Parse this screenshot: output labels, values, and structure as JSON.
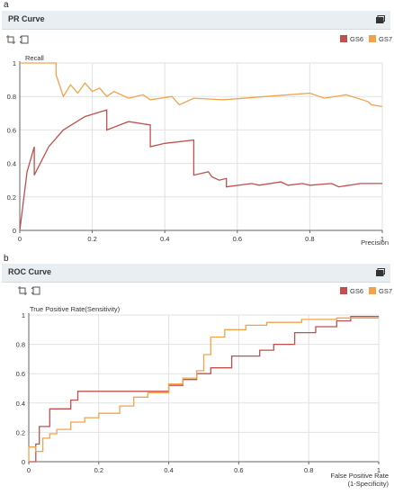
{
  "panels": {
    "a": {
      "letter": "a",
      "title": "PR Curve"
    },
    "b": {
      "letter": "b",
      "title": "ROC Curve"
    }
  },
  "icons": {
    "window": "window-restore-icon",
    "tool1": "zoom-select-icon",
    "tool2": "zoom-reset-icon"
  },
  "chart_data": [
    {
      "type": "line",
      "title": "PR Curve",
      "xlabel": "Precision",
      "ylabel": "Recall",
      "xlim": [
        0,
        1
      ],
      "ylim": [
        0,
        1
      ],
      "xticks": [
        "0",
        "0.2",
        "0.4",
        "0.6",
        "0.8",
        "1"
      ],
      "yticks": [
        "0",
        "0.2",
        "0.4",
        "0.6",
        "0.8",
        "1"
      ],
      "legend": "top-right",
      "grid": true,
      "series": [
        {
          "name": "GS6",
          "color": "#c0504d",
          "points": [
            [
              0,
              0
            ],
            [
              0.02,
              0.35
            ],
            [
              0.04,
              0.5
            ],
            [
              0.04,
              0.33
            ],
            [
              0.08,
              0.5
            ],
            [
              0.12,
              0.6
            ],
            [
              0.18,
              0.68
            ],
            [
              0.24,
              0.72
            ],
            [
              0.24,
              0.6
            ],
            [
              0.3,
              0.65
            ],
            [
              0.36,
              0.63
            ],
            [
              0.36,
              0.5
            ],
            [
              0.4,
              0.52
            ],
            [
              0.48,
              0.54
            ],
            [
              0.48,
              0.33
            ],
            [
              0.52,
              0.35
            ],
            [
              0.53,
              0.32
            ],
            [
              0.55,
              0.3
            ],
            [
              0.57,
              0.31
            ],
            [
              0.57,
              0.26
            ],
            [
              0.64,
              0.28
            ],
            [
              0.66,
              0.27
            ],
            [
              0.72,
              0.29
            ],
            [
              0.74,
              0.27
            ],
            [
              0.78,
              0.28
            ],
            [
              0.8,
              0.27
            ],
            [
              0.86,
              0.28
            ],
            [
              0.88,
              0.26
            ],
            [
              0.94,
              0.28
            ],
            [
              1,
              0.28
            ]
          ]
        },
        {
          "name": "GS7",
          "color": "#f0a34c",
          "points": [
            [
              0,
              1
            ],
            [
              0.1,
              1
            ],
            [
              0.1,
              0.93
            ],
            [
              0.12,
              0.8
            ],
            [
              0.14,
              0.87
            ],
            [
              0.16,
              0.82
            ],
            [
              0.18,
              0.88
            ],
            [
              0.2,
              0.83
            ],
            [
              0.22,
              0.85
            ],
            [
              0.24,
              0.8
            ],
            [
              0.26,
              0.83
            ],
            [
              0.3,
              0.79
            ],
            [
              0.34,
              0.81
            ],
            [
              0.36,
              0.78
            ],
            [
              0.42,
              0.8
            ],
            [
              0.44,
              0.75
            ],
            [
              0.48,
              0.79
            ],
            [
              0.56,
              0.78
            ],
            [
              0.68,
              0.8
            ],
            [
              0.8,
              0.82
            ],
            [
              0.84,
              0.79
            ],
            [
              0.9,
              0.81
            ],
            [
              0.96,
              0.77
            ],
            [
              0.97,
              0.75
            ],
            [
              1,
              0.74
            ]
          ]
        }
      ]
    },
    {
      "type": "line",
      "title": "ROC Curve",
      "xlabel": "False Positive Rate (1-Specificity)",
      "ylabel": "True Positive Rate(Sensitivity)",
      "xlim": [
        0,
        1
      ],
      "ylim": [
        0,
        1
      ],
      "xticks": [
        "0",
        "0.2",
        "0.4",
        "0.6",
        "0.8",
        "1"
      ],
      "yticks": [
        "0",
        "0.2",
        "0.4",
        "0.6",
        "0.8",
        "1"
      ],
      "legend": "top-right",
      "grid": true,
      "series": [
        {
          "name": "GS6",
          "color": "#c0504d",
          "points": [
            [
              0,
              0
            ],
            [
              0.02,
              0
            ],
            [
              0.02,
              0.12
            ],
            [
              0.03,
              0.12
            ],
            [
              0.03,
              0.24
            ],
            [
              0.06,
              0.24
            ],
            [
              0.06,
              0.36
            ],
            [
              0.12,
              0.36
            ],
            [
              0.12,
              0.42
            ],
            [
              0.14,
              0.42
            ],
            [
              0.14,
              0.48
            ],
            [
              0.4,
              0.48
            ],
            [
              0.4,
              0.52
            ],
            [
              0.44,
              0.52
            ],
            [
              0.44,
              0.56
            ],
            [
              0.48,
              0.56
            ],
            [
              0.48,
              0.6
            ],
            [
              0.52,
              0.6
            ],
            [
              0.52,
              0.64
            ],
            [
              0.58,
              0.64
            ],
            [
              0.58,
              0.72
            ],
            [
              0.66,
              0.72
            ],
            [
              0.66,
              0.76
            ],
            [
              0.7,
              0.76
            ],
            [
              0.7,
              0.8
            ],
            [
              0.76,
              0.8
            ],
            [
              0.76,
              0.88
            ],
            [
              0.82,
              0.88
            ],
            [
              0.82,
              0.92
            ],
            [
              0.88,
              0.92
            ],
            [
              0.88,
              0.96
            ],
            [
              0.92,
              0.96
            ],
            [
              0.92,
              0.99
            ],
            [
              1,
              0.99
            ]
          ]
        },
        {
          "name": "GS7",
          "color": "#f0a34c",
          "points": [
            [
              0,
              0
            ],
            [
              0,
              0.1
            ],
            [
              0.02,
              0.1
            ],
            [
              0.02,
              0.07
            ],
            [
              0.04,
              0.07
            ],
            [
              0.04,
              0.16
            ],
            [
              0.06,
              0.16
            ],
            [
              0.06,
              0.19
            ],
            [
              0.08,
              0.19
            ],
            [
              0.08,
              0.22
            ],
            [
              0.12,
              0.22
            ],
            [
              0.12,
              0.27
            ],
            [
              0.16,
              0.27
            ],
            [
              0.16,
              0.3
            ],
            [
              0.2,
              0.3
            ],
            [
              0.2,
              0.33
            ],
            [
              0.26,
              0.33
            ],
            [
              0.26,
              0.38
            ],
            [
              0.3,
              0.38
            ],
            [
              0.3,
              0.44
            ],
            [
              0.34,
              0.44
            ],
            [
              0.34,
              0.47
            ],
            [
              0.4,
              0.47
            ],
            [
              0.4,
              0.53
            ],
            [
              0.44,
              0.53
            ],
            [
              0.44,
              0.57
            ],
            [
              0.48,
              0.57
            ],
            [
              0.48,
              0.62
            ],
            [
              0.5,
              0.62
            ],
            [
              0.5,
              0.73
            ],
            [
              0.52,
              0.73
            ],
            [
              0.52,
              0.85
            ],
            [
              0.56,
              0.85
            ],
            [
              0.56,
              0.9
            ],
            [
              0.62,
              0.9
            ],
            [
              0.62,
              0.93
            ],
            [
              0.68,
              0.93
            ],
            [
              0.68,
              0.95
            ],
            [
              0.78,
              0.95
            ],
            [
              0.78,
              0.97
            ],
            [
              0.88,
              0.97
            ],
            [
              0.88,
              0.98
            ],
            [
              1,
              0.98
            ]
          ]
        }
      ]
    }
  ]
}
